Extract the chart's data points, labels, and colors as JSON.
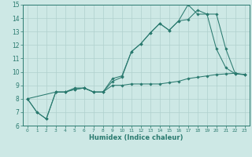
{
  "xlabel": "Humidex (Indice chaleur)",
  "xlim": [
    -0.5,
    23.5
  ],
  "ylim": [
    6,
    15
  ],
  "xticks": [
    0,
    1,
    2,
    3,
    4,
    5,
    6,
    7,
    8,
    9,
    10,
    11,
    12,
    13,
    14,
    15,
    16,
    17,
    18,
    19,
    20,
    21,
    22,
    23
  ],
  "yticks": [
    6,
    7,
    8,
    9,
    10,
    11,
    12,
    13,
    14,
    15
  ],
  "bg_color": "#cde8e5",
  "grid_color": "#b0d0ce",
  "line_color": "#2a7a6f",
  "line1_x": [
    0,
    1,
    2,
    3,
    4,
    5,
    6,
    7,
    8,
    9,
    10,
    11,
    12,
    13,
    14,
    15,
    16,
    17,
    18,
    19,
    20,
    21,
    22,
    23
  ],
  "line1_y": [
    8.0,
    7.0,
    6.5,
    8.5,
    8.5,
    8.7,
    8.8,
    8.5,
    8.5,
    9.0,
    9.0,
    9.1,
    9.1,
    9.1,
    9.1,
    9.2,
    9.3,
    9.5,
    9.6,
    9.7,
    9.8,
    9.85,
    9.9,
    9.8
  ],
  "line2_x": [
    0,
    1,
    2,
    3,
    4,
    5,
    6,
    7,
    8,
    9,
    10,
    11,
    12,
    13,
    14,
    15,
    16,
    17,
    18,
    19,
    20,
    21,
    22,
    23
  ],
  "line2_y": [
    8.0,
    7.0,
    6.5,
    8.5,
    8.5,
    8.8,
    8.8,
    8.5,
    8.5,
    9.5,
    9.7,
    11.5,
    12.1,
    12.9,
    13.6,
    13.1,
    13.8,
    15.0,
    14.3,
    14.3,
    11.7,
    10.3,
    9.85,
    9.8
  ],
  "line3_x": [
    0,
    3,
    4,
    5,
    6,
    7,
    8,
    9,
    10,
    11,
    12,
    13,
    14,
    15,
    16,
    17,
    18,
    19,
    20,
    21,
    22,
    23
  ],
  "line3_y": [
    8.0,
    8.5,
    8.5,
    8.7,
    8.8,
    8.5,
    8.5,
    9.3,
    9.6,
    11.5,
    12.1,
    12.9,
    13.6,
    13.1,
    13.8,
    13.9,
    14.6,
    14.3,
    14.3,
    11.7,
    9.85,
    9.8
  ]
}
